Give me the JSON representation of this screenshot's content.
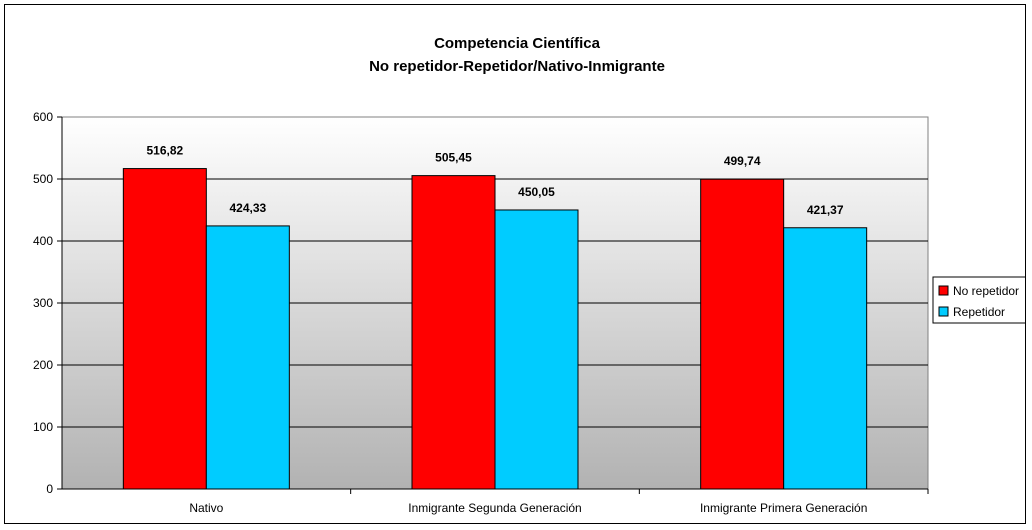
{
  "chart_data": {
    "type": "bar",
    "title": "Competencia Científica",
    "subtitle": "No repetidor-Repetidor/Nativo-Inmigrante",
    "xlabel": "",
    "ylabel": "",
    "categories": [
      "Nativo",
      "Inmigrante Segunda Generación",
      "Inmigrante Primera Generación"
    ],
    "series": [
      {
        "name": "No repetidor",
        "values": [
          516.82,
          505.45,
          499.74
        ],
        "labels": [
          "516,82",
          "505,45",
          "499,74"
        ],
        "color": "#ff0000"
      },
      {
        "name": "Repetidor",
        "values": [
          424.33,
          450.05,
          421.37
        ],
        "labels": [
          "424,33",
          "450,05",
          "421,37"
        ],
        "color": "#00ccff"
      }
    ],
    "ylim": [
      0,
      600
    ],
    "yticks": [
      0,
      100,
      200,
      300,
      400,
      500,
      600
    ],
    "grid": true,
    "legend_position": "right",
    "plot_background": "gradient white-to-gray"
  }
}
